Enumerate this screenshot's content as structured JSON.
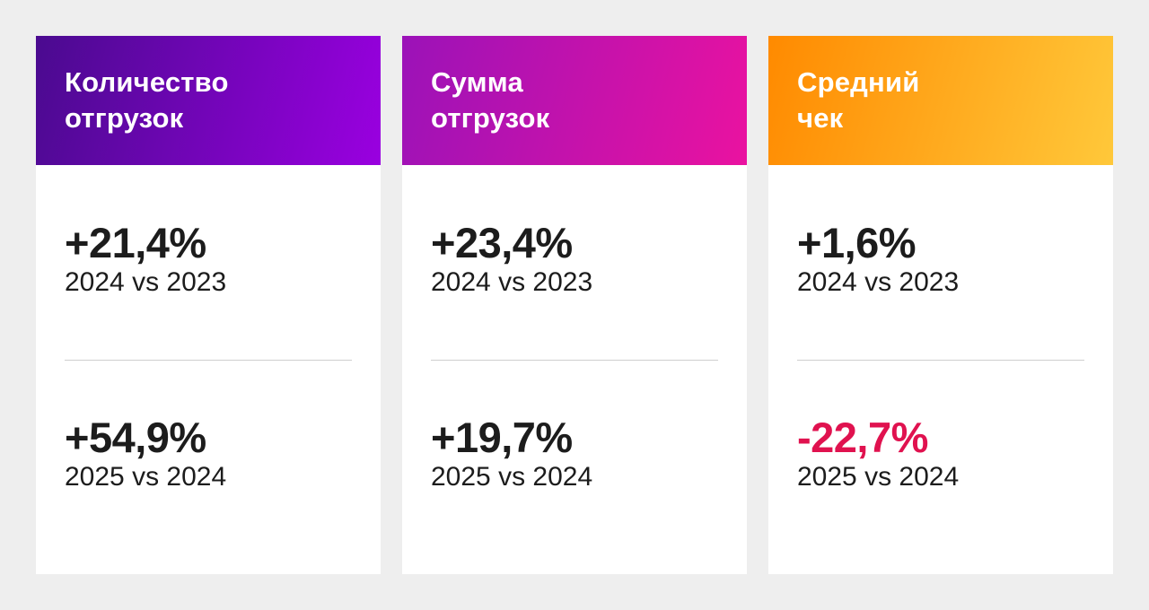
{
  "colors": {
    "background": "#eeeeee",
    "card": "#ffffff",
    "text": "#1c1c1c",
    "negative": "#e0124f",
    "divider": "#cfcfcf"
  },
  "cards": [
    {
      "title": "Количество\nотгрузок",
      "gradient": [
        "#4a0a8f",
        "#9a00e0"
      ],
      "metrics": [
        {
          "value": "+21,4%",
          "caption": "2024 vs 2023",
          "color": "#1c1c1c"
        },
        {
          "value": "+54,9%",
          "caption": "2025 vs 2024",
          "color": "#1c1c1c"
        }
      ]
    },
    {
      "title": "Сумма\nотгрузок",
      "gradient": [
        "#9b12b8",
        "#ea12a0"
      ],
      "metrics": [
        {
          "value": "+23,4%",
          "caption": "2024 vs 2023",
          "color": "#1c1c1c"
        },
        {
          "value": "+19,7%",
          "caption": "2025 vs 2024",
          "color": "#1c1c1c"
        }
      ]
    },
    {
      "title": "Средний\nчек",
      "gradient": [
        "#ff8a00",
        "#ffc83a"
      ],
      "metrics": [
        {
          "value": "+1,6%",
          "caption": "2024 vs 2023",
          "color": "#1c1c1c"
        },
        {
          "value": "-22,7%",
          "caption": "2025 vs 2024",
          "color": "#e0124f"
        }
      ]
    }
  ]
}
